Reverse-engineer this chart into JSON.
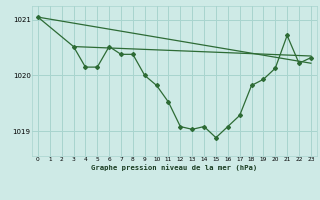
{
  "bg_color": "#ceeae6",
  "grid_color": "#a8d4ce",
  "line_color": "#2d6b35",
  "title": "Graphe pression niveau de la mer (hPa)",
  "xlim": [
    -0.5,
    23.5
  ],
  "ylim": [
    1018.55,
    1021.25
  ],
  "yticks": [
    1019,
    1020,
    1021
  ],
  "xticks": [
    0,
    1,
    2,
    3,
    4,
    5,
    6,
    7,
    8,
    9,
    10,
    11,
    12,
    13,
    14,
    15,
    16,
    17,
    18,
    19,
    20,
    21,
    22,
    23
  ],
  "line1_x": [
    0,
    23
  ],
  "line1_y": [
    1021.05,
    1020.22
  ],
  "line2_x": [
    0,
    3,
    23
  ],
  "line2_y": [
    1021.05,
    1020.52,
    1020.35
  ],
  "line3_x": [
    3,
    4,
    5,
    6,
    7,
    8,
    9,
    10,
    11,
    12,
    13,
    14,
    15,
    16,
    17,
    18,
    19,
    20,
    21,
    22,
    23
  ],
  "line3_y": [
    1020.52,
    1020.15,
    1020.15,
    1020.52,
    1020.38,
    1020.38,
    1020.0,
    1019.82,
    1019.52,
    1019.08,
    1019.03,
    1019.08,
    1018.88,
    1019.08,
    1019.28,
    1019.82,
    1019.93,
    1020.13,
    1020.72,
    1020.22,
    1020.32
  ],
  "marker_x": [
    0,
    3,
    4,
    5,
    6,
    7,
    8,
    9,
    10,
    11,
    12,
    13,
    14,
    15,
    16,
    17,
    18,
    19,
    20,
    21,
    22,
    23
  ],
  "marker_y": [
    1021.05,
    1020.52,
    1020.15,
    1020.15,
    1020.52,
    1020.38,
    1020.38,
    1020.0,
    1019.82,
    1019.52,
    1019.08,
    1019.03,
    1019.08,
    1018.88,
    1019.08,
    1019.28,
    1019.82,
    1019.93,
    1020.13,
    1020.72,
    1020.22,
    1020.32
  ]
}
